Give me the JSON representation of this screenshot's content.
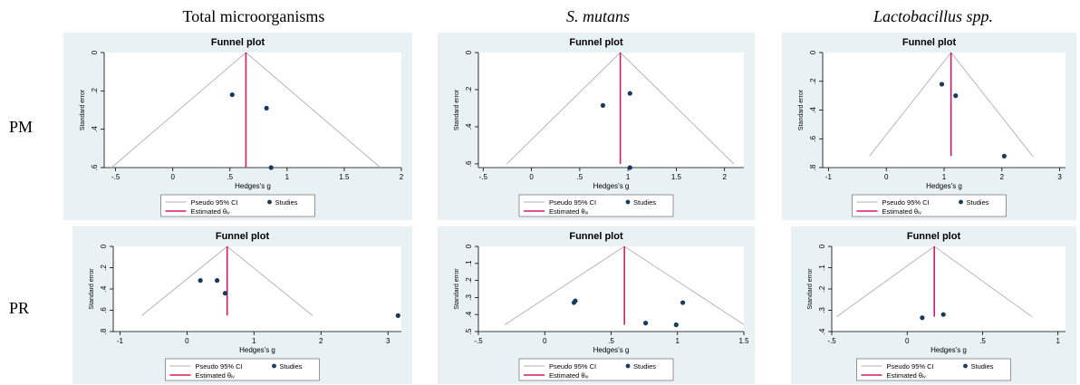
{
  "column_titles": [
    "Total microorganisms",
    "S. mutans",
    "Lactobacillus spp."
  ],
  "row_labels": [
    "PM",
    "PR"
  ],
  "colors": {
    "panel_bg": "#e8f1f4",
    "plot_bg": "#ffffff",
    "point": "#1a3a5c",
    "estimate_line": "#d81b60",
    "ci_line": "#b0b0b0",
    "title_text": "#1f2d3d"
  },
  "chart_data": [
    {
      "id": "pm-total",
      "type": "scatter",
      "title": "Funnel plot",
      "xlabel": "Hedges's g",
      "ylabel": "Standard error",
      "xlim": [
        -0.6,
        2.0
      ],
      "ylim": [
        0,
        0.6
      ],
      "xticks": [
        -0.5,
        0,
        0.5,
        1,
        1.5,
        2
      ],
      "xticklabels": [
        "-.5",
        "0",
        ".5",
        "1",
        "1.5",
        "2"
      ],
      "yticks": [
        0,
        0.2,
        0.4,
        0.6
      ],
      "yticklabels": [
        "0",
        ".2",
        ".4",
        ".6"
      ],
      "estimate": 0.64,
      "ci_ymax": 0.6,
      "points": [
        {
          "x": 0.52,
          "y": 0.22
        },
        {
          "x": 0.82,
          "y": 0.29
        },
        {
          "x": 0.86,
          "y": 0.6
        }
      ],
      "legend": [
        "Pseudo 95% CI",
        "Studies",
        "Estimated θᵢᵥ"
      ]
    },
    {
      "id": "pm-smutans",
      "type": "scatter",
      "title": "Funnel plot",
      "xlabel": "Hedges's g",
      "ylabel": "Standard error",
      "xlim": [
        -0.55,
        2.2
      ],
      "ylim": [
        0,
        0.62
      ],
      "xticks": [
        -0.5,
        0,
        0.5,
        1,
        1.5,
        2
      ],
      "xticklabels": [
        "-.5",
        "0",
        ".5",
        "1",
        "1.5",
        "2"
      ],
      "yticks": [
        0,
        0.2,
        0.4,
        0.6
      ],
      "yticklabels": [
        "0",
        ".2",
        ".4",
        ".6"
      ],
      "estimate": 0.92,
      "ci_ymax": 0.6,
      "points": [
        {
          "x": 1.02,
          "y": 0.22
        },
        {
          "x": 0.74,
          "y": 0.285
        },
        {
          "x": 1.02,
          "y": 0.62
        }
      ],
      "legend": [
        "Pseudo 95% CI",
        "Studies",
        "Estimated θᵢᵥ"
      ]
    },
    {
      "id": "pm-lacto",
      "type": "scatter",
      "title": "Funnel plot",
      "xlabel": "Hedges's g",
      "ylabel": "Standard error",
      "xlim": [
        -1.1,
        3.1
      ],
      "ylim": [
        0,
        0.8
      ],
      "xticks": [
        -1,
        0,
        1,
        2,
        3
      ],
      "xticklabels": [
        "-1",
        "0",
        "1",
        "2",
        "3"
      ],
      "yticks": [
        0,
        0.2,
        0.4,
        0.6,
        0.8
      ],
      "yticklabels": [
        "0",
        ".2",
        ".4",
        ".6",
        ".8"
      ],
      "estimate": 1.12,
      "ci_ymax": 0.72,
      "points": [
        {
          "x": 0.96,
          "y": 0.22
        },
        {
          "x": 1.2,
          "y": 0.3
        },
        {
          "x": 2.04,
          "y": 0.72
        }
      ],
      "legend": [
        "Pseudo 95% CI",
        "Studies",
        "Estimated θᵢᵥ"
      ]
    },
    {
      "id": "pr-total",
      "type": "scatter",
      "title": "Funnel plot",
      "xlabel": "Hedges's g",
      "ylabel": "Standard error",
      "xlim": [
        -1.1,
        3.2
      ],
      "ylim": [
        0,
        0.8
      ],
      "xticks": [
        -1,
        0,
        1,
        2,
        3
      ],
      "xticklabels": [
        "-1",
        "0",
        "1",
        "2",
        "3"
      ],
      "yticks": [
        0,
        0.2,
        0.4,
        0.6,
        0.8
      ],
      "yticklabels": [
        "0",
        ".2",
        ".4",
        ".6",
        ".8"
      ],
      "estimate": 0.6,
      "ci_ymax": 0.65,
      "points": [
        {
          "x": 0.2,
          "y": 0.32
        },
        {
          "x": 0.45,
          "y": 0.32
        },
        {
          "x": 0.57,
          "y": 0.44
        },
        {
          "x": 3.15,
          "y": 0.65
        }
      ],
      "legend": [
        "Pseudo 95% CI",
        "Studies",
        "Estimated θᵢᵥ"
      ]
    },
    {
      "id": "pr-smutans",
      "type": "scatter",
      "title": "Funnel plot",
      "xlabel": "Hedges's g",
      "ylabel": "Standard error",
      "xlim": [
        -0.5,
        1.5
      ],
      "ylim": [
        0,
        0.5
      ],
      "xticks": [
        -0.5,
        0,
        0.5,
        1,
        1.5
      ],
      "xticklabels": [
        "-.5",
        "0",
        ".5",
        "1",
        "1.5"
      ],
      "yticks": [
        0,
        0.1,
        0.2,
        0.3,
        0.4,
        0.5
      ],
      "yticklabels": [
        "0",
        ".1",
        ".2",
        ".3",
        ".4",
        ".5"
      ],
      "estimate": 0.6,
      "ci_ymax": 0.46,
      "points": [
        {
          "x": 0.22,
          "y": 0.33
        },
        {
          "x": 0.23,
          "y": 0.32
        },
        {
          "x": 1.04,
          "y": 0.33
        },
        {
          "x": 0.76,
          "y": 0.45
        },
        {
          "x": 0.99,
          "y": 0.46
        }
      ],
      "legend": [
        "Pseudo 95% CI",
        "Studies",
        "Estimated θᵢᵥ"
      ]
    },
    {
      "id": "pr-lacto",
      "type": "scatter",
      "title": "Funnel plot",
      "xlabel": "Hedges's g",
      "ylabel": "Standard error",
      "xlim": [
        -0.5,
        1.05
      ],
      "ylim": [
        0,
        0.4
      ],
      "xticks": [
        -0.5,
        0,
        0.5,
        1
      ],
      "xticklabels": [
        "-.5",
        "0",
        ".5",
        "1"
      ],
      "yticks": [
        0,
        0.1,
        0.2,
        0.3,
        0.4
      ],
      "yticklabels": [
        "0",
        ".1",
        ".2",
        ".3",
        ".4"
      ],
      "estimate": 0.18,
      "ci_ymax": 0.33,
      "points": [
        {
          "x": 0.1,
          "y": 0.335
        },
        {
          "x": 0.24,
          "y": 0.32
        }
      ],
      "legend": [
        "Pseudo 95% CI",
        "Studies",
        "Estimated θᵢᵥ"
      ]
    }
  ]
}
